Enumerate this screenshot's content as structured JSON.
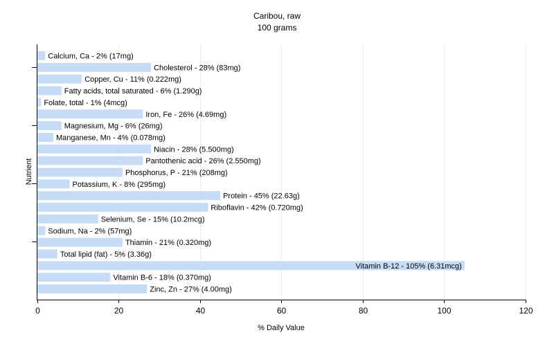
{
  "chart_data": {
    "type": "bar",
    "orientation": "horizontal",
    "title": "Caribou, raw",
    "subtitle": "100 grams",
    "xlabel": "% Daily Value",
    "ylabel": "Nutrient",
    "xlim": [
      0,
      120
    ],
    "xticks": [
      0,
      20,
      40,
      60,
      80,
      100,
      120
    ],
    "grid": true,
    "bar_color": "#c6dcf6",
    "categories": [
      "Calcium, Ca",
      "Cholesterol",
      "Copper, Cu",
      "Fatty acids, total saturated",
      "Folate, total",
      "Iron, Fe",
      "Magnesium, Mg",
      "Manganese, Mn",
      "Niacin",
      "Pantothenic acid",
      "Phosphorus, P",
      "Potassium, K",
      "Protein",
      "Riboflavin",
      "Selenium, Se",
      "Sodium, Na",
      "Thiamin",
      "Total lipid (fat)",
      "Vitamin B-12",
      "Vitamin B-6",
      "Zinc, Zn"
    ],
    "values": [
      2,
      28,
      11,
      6,
      1,
      26,
      6,
      4,
      28,
      26,
      21,
      8,
      45,
      42,
      15,
      2,
      21,
      5,
      105,
      18,
      27
    ],
    "labels": [
      "Calcium, Ca - 2% (17mg)",
      "Cholesterol - 28% (83mg)",
      "Copper, Cu - 11% (0.222mg)",
      "Fatty acids, total saturated - 6% (1.290g)",
      "Folate, total - 1% (4mcg)",
      "Iron, Fe - 26% (4.69mg)",
      "Magnesium, Mg - 6% (26mg)",
      "Manganese, Mn - 4% (0.078mg)",
      "Niacin - 28% (5.500mg)",
      "Pantothenic acid - 26% (2.550mg)",
      "Phosphorus, P - 21% (208mg)",
      "Potassium, K - 8% (295mg)",
      "Protein - 45% (22.63g)",
      "Riboflavin - 42% (0.720mg)",
      "Selenium, Se - 15% (10.2mcg)",
      "Sodium, Na - 2% (57mg)",
      "Thiamin - 21% (0.320mg)",
      "Total lipid (fat) - 5% (3.36g)",
      "Vitamin B-12 - 105% (6.31mcg)",
      "Vitamin B-6 - 18% (0.370mg)",
      "Zinc, Zn - 27% (4.00mg)"
    ]
  }
}
